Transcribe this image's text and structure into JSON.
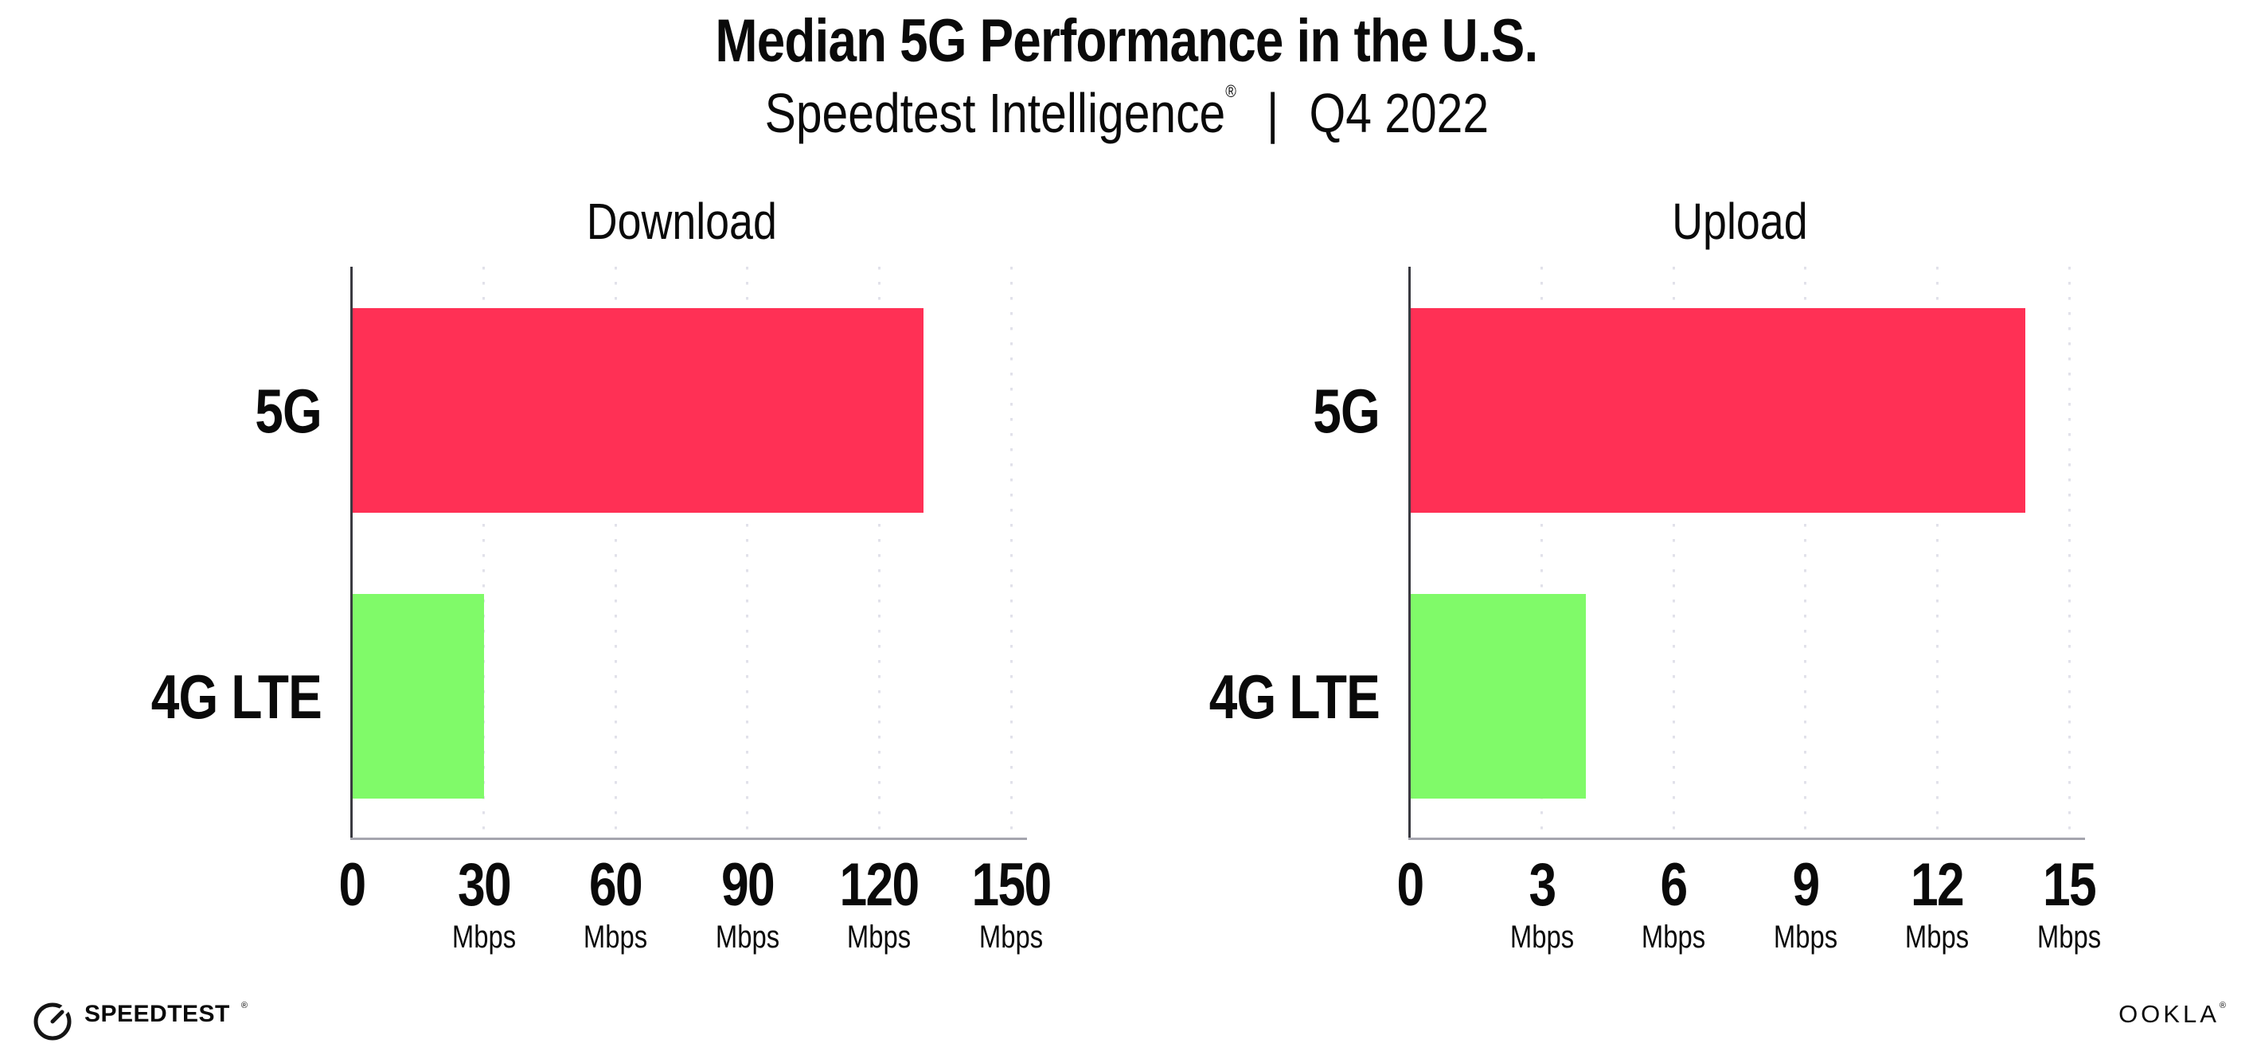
{
  "header": {
    "title": "Median 5G Performance in the U.S.",
    "subtitle_brand": "Speedtest Intelligence",
    "subtitle_reg": "®",
    "subtitle_sep": "|",
    "subtitle_period": "Q4 2022"
  },
  "colors": {
    "bar_5g": "#FF3055",
    "bar_4g_lte": "#80FA69",
    "gridline": "#E1E1EA",
    "x_axis": "#A5A5AE",
    "y_axis": "#3A3A41",
    "text": "#0A0A0A",
    "background": "#FFFFFF"
  },
  "chart_data": [
    {
      "type": "bar",
      "orientation": "horizontal",
      "title": "Download",
      "categories": [
        "5G",
        "4G LTE"
      ],
      "values": [
        130,
        30
      ],
      "unit": "Mbps",
      "xlim": [
        0,
        150
      ],
      "xticks": [
        0,
        30,
        60,
        90,
        120,
        150
      ],
      "bar_colors": [
        "#FF3055",
        "#80FA69"
      ],
      "grid": "vertical-dotted",
      "legend": "none"
    },
    {
      "type": "bar",
      "orientation": "horizontal",
      "title": "Upload",
      "categories": [
        "5G",
        "4G LTE"
      ],
      "values": [
        14,
        4
      ],
      "unit": "Mbps",
      "xlim": [
        0,
        15
      ],
      "xticks": [
        0,
        3,
        6,
        9,
        12,
        15
      ],
      "bar_colors": [
        "#FF3055",
        "#80FA69"
      ],
      "grid": "vertical-dotted",
      "legend": "none"
    }
  ],
  "footer": {
    "speedtest_logo": "SPEEDTEST",
    "speedtest_reg": "®",
    "speedtest_icon": "gauge-icon",
    "ookla_logo": "OOKLA",
    "ookla_reg": "®"
  }
}
